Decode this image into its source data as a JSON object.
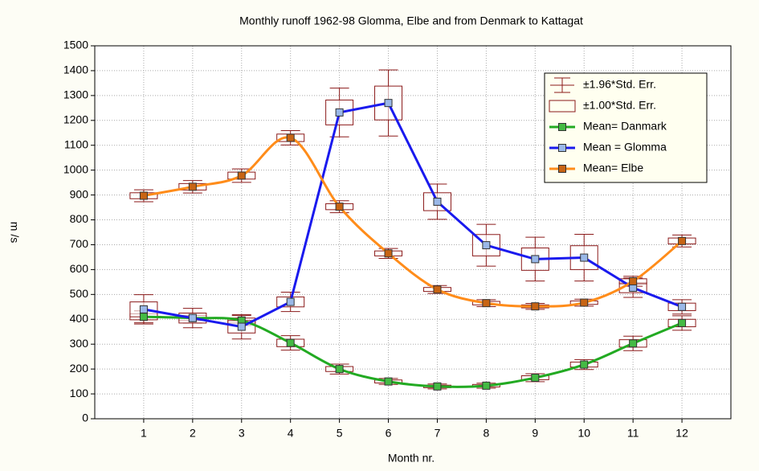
{
  "chart_data": {
    "type": "box_line",
    "title": "Monthly runoff 1962-98 Glomma, Elbe and from Denmark to Kattagat",
    "x_label": "Month nr.",
    "y_label": "m /s",
    "x": [
      1,
      2,
      3,
      4,
      5,
      6,
      7,
      8,
      9,
      10,
      11,
      12
    ],
    "xlim": [
      0,
      13
    ],
    "xticks": [
      1,
      2,
      3,
      4,
      5,
      6,
      7,
      8,
      9,
      10,
      11,
      12
    ],
    "ylim": [
      0,
      1500
    ],
    "yticks": [
      0,
      100,
      200,
      300,
      400,
      500,
      600,
      700,
      800,
      900,
      1000,
      1100,
      1200,
      1300,
      1400,
      1500
    ],
    "grid": true,
    "legend_position": "upper right",
    "error_color": "#8b1a1a",
    "error_legend": [
      "±1.96*Std. Err.",
      "±1.00*Std. Err."
    ],
    "series": [
      {
        "name": "Mean= Danmark",
        "color": "#22aa22",
        "marker_color": "#44bb44",
        "smooth": true,
        "values": [
          410,
          405,
          395,
          305,
          200,
          150,
          130,
          133,
          165,
          218,
          303,
          385
        ],
        "box_errors": [
          12,
          10,
          10,
          15,
          10,
          6,
          5,
          5,
          8,
          10,
          15,
          15
        ],
        "whisker_errors": [
          24,
          20,
          20,
          29,
          20,
          12,
          10,
          10,
          16,
          20,
          29,
          29
        ]
      },
      {
        "name": "Mean = Glomma",
        "color": "#1a1aee",
        "marker_color": "#9ab8e8",
        "smooth": false,
        "values": [
          440,
          405,
          370,
          470,
          1232,
          1270,
          873,
          698,
          642,
          648,
          527,
          450
        ],
        "box_errors": [
          30,
          20,
          25,
          20,
          50,
          68,
          36,
          43,
          45,
          48,
          20,
          15
        ],
        "whisker_errors": [
          59,
          39,
          49,
          39,
          98,
          133,
          71,
          84,
          88,
          94,
          39,
          29
        ]
      },
      {
        "name": "Mean= Elbe",
        "color": "#ff8c1a",
        "marker_color": "#c86414",
        "smooth": true,
        "values": [
          897,
          933,
          978,
          1130,
          853,
          665,
          520,
          465,
          452,
          467,
          553,
          715
        ],
        "box_errors": [
          12,
          13,
          14,
          15,
          12,
          10,
          8,
          7,
          6,
          7,
          10,
          12
        ],
        "whisker_errors": [
          24,
          25,
          27,
          29,
          24,
          20,
          16,
          14,
          12,
          14,
          20,
          24
        ]
      }
    ]
  }
}
